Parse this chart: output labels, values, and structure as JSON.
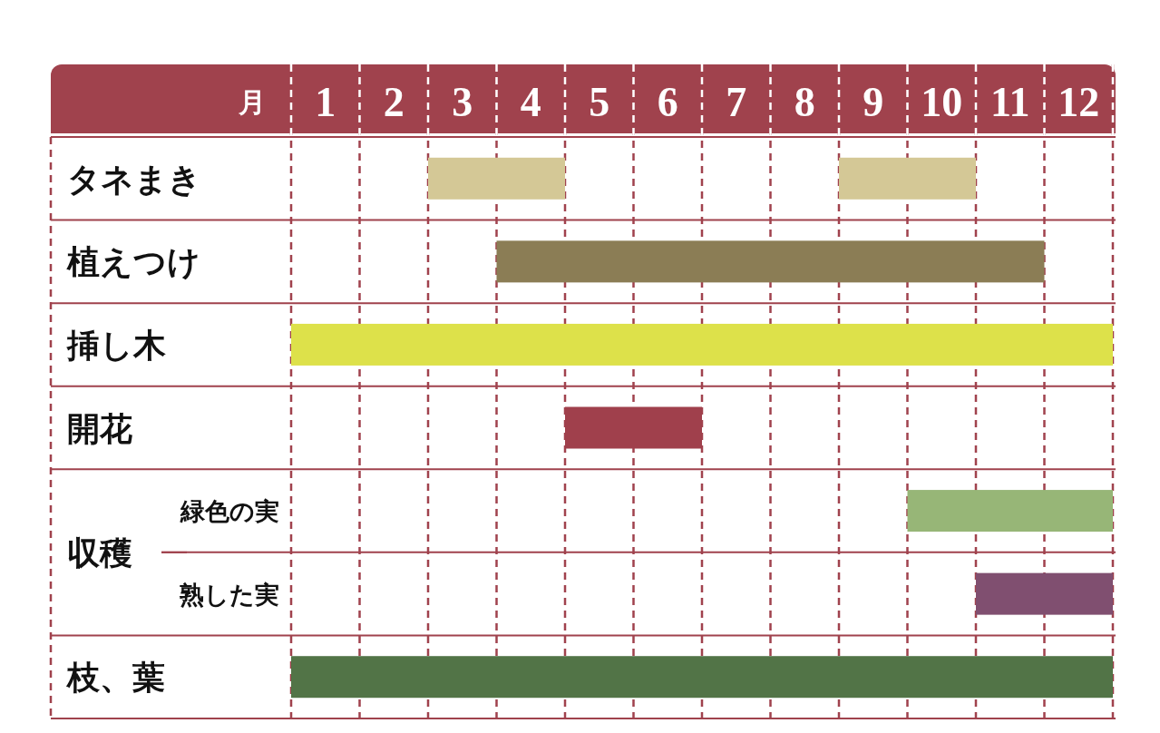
{
  "chart_data": {
    "type": "bar",
    "orientation": "horizontal",
    "xlabel": "月",
    "categories": [
      "タネまき",
      "植えつけ",
      "挿し木",
      "開花",
      "緑色の実",
      "熟した実",
      "枝、葉"
    ],
    "annotations": [
      "収穫"
    ],
    "xlim": [
      0,
      12
    ],
    "xticks": [
      {
        "value": 0,
        "label": null
      },
      {
        "value": 0.5,
        "label": "1"
      },
      {
        "value": 1,
        "label": null
      },
      {
        "value": 1.5,
        "label": "2"
      },
      {
        "value": 2,
        "label": null
      },
      {
        "value": 2.5,
        "label": "3"
      },
      {
        "value": 3,
        "label": null
      },
      {
        "value": 3.5,
        "label": "4"
      },
      {
        "value": 4,
        "label": null
      },
      {
        "value": 4.5,
        "label": "5"
      },
      {
        "value": 5,
        "label": null
      },
      {
        "value": 5.5,
        "label": "6"
      },
      {
        "value": 6,
        "label": null
      },
      {
        "value": 6.5,
        "label": "7"
      },
      {
        "value": 7,
        "label": null
      },
      {
        "value": 7.5,
        "label": "8"
      },
      {
        "value": 8,
        "label": null
      },
      {
        "value": 8.5,
        "label": "9"
      },
      {
        "value": 9,
        "label": null
      },
      {
        "value": 9.5,
        "label": "10"
      },
      {
        "value": 10,
        "label": null
      },
      {
        "value": 10.5,
        "label": "11"
      },
      {
        "value": 11,
        "label": null
      },
      {
        "value": 11.5,
        "label": "12"
      },
      {
        "value": 12,
        "label": null
      }
    ],
    "grid": true,
    "series": [
      {
        "values": [
          2,
          8,
          12,
          2,
          3,
          2,
          12
        ],
        "base": [
          2,
          3,
          0,
          4,
          9,
          10,
          0
        ],
        "colors": [
          "#d4c896",
          "#8b7d55",
          "#dde14a",
          "#a0404c",
          "#97b677",
          "#804f70",
          "#527447"
        ]
      },
      {
        "values": [
          2,
          null,
          null,
          null,
          null,
          null,
          null
        ],
        "base": [
          8,
          null,
          null,
          null,
          null,
          null,
          null
        ],
        "colors": [
          "#d4c896",
          null,
          null,
          null,
          null,
          null,
          null
        ]
      }
    ]
  }
}
